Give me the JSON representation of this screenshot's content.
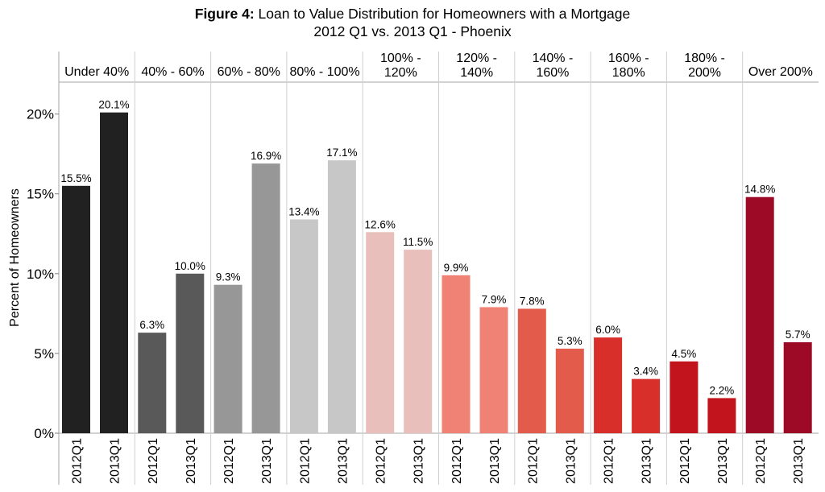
{
  "title": {
    "prefix": "Figure 4:",
    "main": "Loan to Value Distribution for Homeowners with a Mortgage",
    "subtitle": "2012 Q1 vs. 2013 Q1 - Phoenix"
  },
  "chart_data": {
    "type": "bar",
    "ylabel": "Percent of Homeowners",
    "ylim": [
      0,
      22
    ],
    "yticks": [
      0,
      5,
      10,
      15,
      20
    ],
    "ytick_labels": [
      "0%",
      "5%",
      "10%",
      "15%",
      "20%"
    ],
    "grid": false,
    "panel_order": [
      "2012Q1",
      "2013Q1"
    ],
    "groups": [
      {
        "label": [
          "Under 40%"
        ],
        "color": "#212121",
        "values": [
          15.5,
          20.1
        ],
        "value_labels": [
          "15.5%",
          "20.1%"
        ]
      },
      {
        "label": [
          "40% - 60%"
        ],
        "color": "#595959",
        "values": [
          6.3,
          10.0
        ],
        "value_labels": [
          "6.3%",
          "10.0%"
        ]
      },
      {
        "label": [
          "60% - 80%"
        ],
        "color": "#979797",
        "values": [
          9.3,
          16.9
        ],
        "value_labels": [
          "9.3%",
          "16.9%"
        ]
      },
      {
        "label": [
          "80% - 100%"
        ],
        "color": "#c7c7c7",
        "values": [
          13.4,
          17.1
        ],
        "value_labels": [
          "13.4%",
          "17.1%"
        ]
      },
      {
        "label": [
          "100% -",
          "120%"
        ],
        "color": "#e8bfbb",
        "values": [
          12.6,
          11.5
        ],
        "value_labels": [
          "12.6%",
          "11.5%"
        ]
      },
      {
        "label": [
          "120% -",
          "140%"
        ],
        "color": "#f08275",
        "values": [
          9.9,
          7.9
        ],
        "value_labels": [
          "9.9%",
          "7.9%"
        ]
      },
      {
        "label": [
          "140% -",
          "160%"
        ],
        "color": "#e35b4a",
        "values": [
          7.8,
          5.3
        ],
        "value_labels": [
          "7.8%",
          "5.3%"
        ]
      },
      {
        "label": [
          "160% -",
          "180%"
        ],
        "color": "#d92f2b",
        "values": [
          6.0,
          3.4
        ],
        "value_labels": [
          "6.0%",
          "3.4%"
        ]
      },
      {
        "label": [
          "180% -",
          "200%"
        ],
        "color": "#c1141d",
        "values": [
          4.5,
          2.2
        ],
        "value_labels": [
          "4.5%",
          "2.2%"
        ]
      },
      {
        "label": [
          "Over 200%"
        ],
        "color": "#9c0a26",
        "values": [
          14.8,
          5.7
        ],
        "value_labels": [
          "14.8%",
          "5.7%"
        ]
      }
    ]
  }
}
